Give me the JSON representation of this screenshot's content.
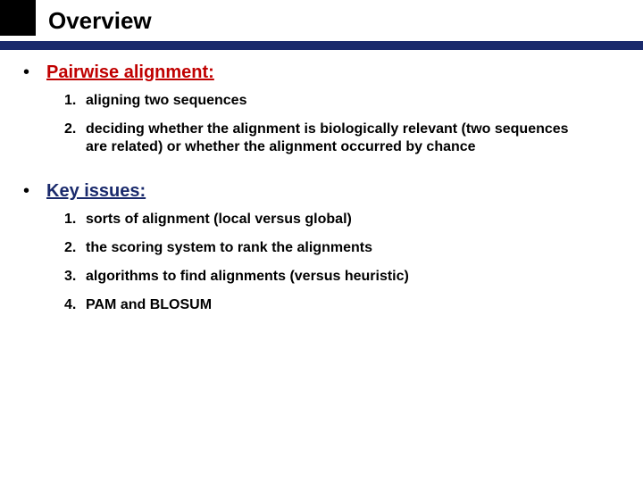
{
  "colors": {
    "corner": "#000000",
    "rule": "#1a2a6c",
    "background": "#ffffff",
    "title": "#000000",
    "heading1": "#c00000",
    "heading2": "#1a2a6c",
    "body": "#000000"
  },
  "title": "Overview",
  "sections": [
    {
      "heading": "Pairwise alignment:",
      "heading_color": "#c00000",
      "items": [
        {
          "num": "1.",
          "text": "aligning two sequences"
        },
        {
          "num": "2.",
          "text": "deciding whether the alignment is biologically relevant (two sequences are related) or whether the alignment occurred by chance"
        }
      ]
    },
    {
      "heading": "Key issues:",
      "heading_color": "#1a2a6c",
      "items": [
        {
          "num": "1.",
          "text": "sorts of alignment (local versus global)"
        },
        {
          "num": "2.",
          "text": "the scoring system to rank the alignments"
        },
        {
          "num": "3.",
          "text": "algorithms to find alignments (versus heuristic)"
        },
        {
          "num": "4.",
          "text": "PAM and BLOSUM"
        }
      ]
    }
  ]
}
